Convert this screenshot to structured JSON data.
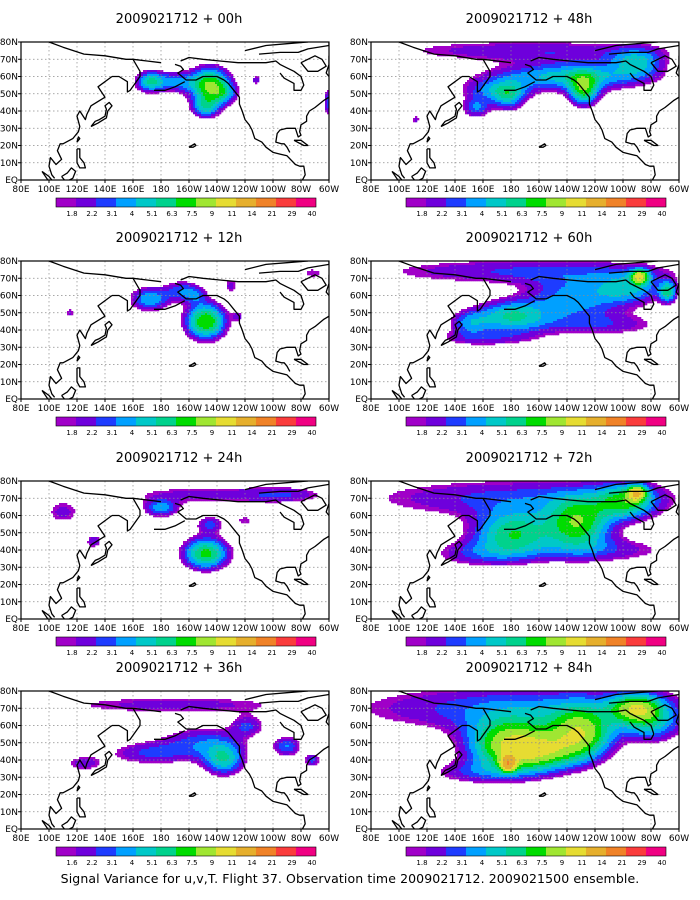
{
  "figure": {
    "caption": "Signal Variance for u,v,T. Flight 37. Observation time 2009021712. 2009021500 ensemble."
  },
  "x_tick_labels": [
    "80E",
    "100E",
    "120E",
    "140E",
    "160E",
    "180",
    "160W",
    "140W",
    "120W",
    "100W",
    "80W",
    "60W"
  ],
  "y_tick_labels": [
    "80N",
    "70N",
    "60N",
    "50N",
    "40N",
    "30N",
    "20N",
    "10N",
    "EQ"
  ],
  "colorbar": {
    "labels": [
      "1.8",
      "2.2",
      "3.1",
      "4",
      "5.1",
      "6.3",
      "7.5",
      "9",
      "11",
      "14",
      "21",
      "29",
      "40"
    ],
    "label_variants": {
      "panel_36h": "1.6"
    },
    "colors": [
      "#a000c8",
      "#6e00dc",
      "#1e3cff",
      "#00a0ff",
      "#00c8c8",
      "#00d28c",
      "#00dc00",
      "#a0e632",
      "#e6dc32",
      "#e6af2d",
      "#f08228",
      "#fa3c3c",
      "#f00082"
    ]
  },
  "panels": [
    {
      "title": "2009021712 + 00h",
      "lead_hours": 0
    },
    {
      "title": "2009021712 + 48h",
      "lead_hours": 48
    },
    {
      "title": "2009021712 + 12h",
      "lead_hours": 12
    },
    {
      "title": "2009021712 + 60h",
      "lead_hours": 60
    },
    {
      "title": "2009021712 + 24h",
      "lead_hours": 24
    },
    {
      "title": "2009021712 + 72h",
      "lead_hours": 72
    },
    {
      "title": "2009021712 + 36h",
      "lead_hours": 36
    },
    {
      "title": "2009021712 + 84h",
      "lead_hours": 84
    }
  ],
  "chart_data": {
    "type": "heatmap",
    "x_range_deg_east": [
      80,
      300
    ],
    "y_range_deg_north": [
      0,
      80
    ],
    "grid": true,
    "levels": [
      1.8,
      2.2,
      3.1,
      4,
      5.1,
      6.3,
      7.5,
      9,
      11,
      14,
      21,
      29,
      40
    ],
    "fields": [
      {
        "lead_hours": 0,
        "blobs": [
          {
            "lon": 215,
            "lat": 55,
            "rlon": 14,
            "rlat": 10,
            "amp": 9
          },
          {
            "lon": 190,
            "lat": 57,
            "rlon": 14,
            "rlat": 6,
            "amp": 4
          },
          {
            "lon": 172,
            "lat": 57,
            "rlon": 10,
            "rlat": 6,
            "amp": 6
          },
          {
            "lon": 248,
            "lat": 58,
            "rlon": 3,
            "rlat": 3,
            "amp": 3
          },
          {
            "lon": 300,
            "lat": 45,
            "rlon": 4,
            "rlat": 8,
            "amp": 4
          },
          {
            "lon": 212,
            "lat": 42,
            "rlon": 10,
            "rlat": 6,
            "amp": 5
          },
          {
            "lon": 225,
            "lat": 50,
            "rlon": 10,
            "rlat": 6,
            "amp": 3
          }
        ]
      },
      {
        "lead_hours": 48,
        "blobs": [
          {
            "lon": 190,
            "lat": 75,
            "rlon": 110,
            "rlat": 7,
            "amp": 2.8
          },
          {
            "lon": 228,
            "lat": 60,
            "rlon": 50,
            "rlat": 10,
            "amp": 3.5
          },
          {
            "lon": 168,
            "lat": 52,
            "rlon": 24,
            "rlat": 6,
            "amp": 3.5
          },
          {
            "lon": 232,
            "lat": 52,
            "rlon": 10,
            "rlat": 9,
            "amp": 7
          },
          {
            "lon": 178,
            "lat": 48,
            "rlon": 12,
            "rlat": 8,
            "amp": 4.5
          },
          {
            "lon": 155,
            "lat": 42,
            "rlon": 10,
            "rlat": 6,
            "amp": 4
          },
          {
            "lon": 270,
            "lat": 68,
            "rlon": 18,
            "rlat": 8,
            "amp": 4.5
          },
          {
            "lon": 210,
            "lat": 60,
            "rlon": 60,
            "rlat": 6,
            "amp": 2.5
          },
          {
            "lon": 112,
            "lat": 35,
            "rlon": 3,
            "rlat": 3,
            "amp": 2.5
          }
        ]
      },
      {
        "lead_hours": 12,
        "blobs": [
          {
            "lon": 212,
            "lat": 45,
            "rlon": 14,
            "rlat": 10,
            "amp": 9
          },
          {
            "lon": 172,
            "lat": 58,
            "rlon": 14,
            "rlat": 7,
            "amp": 5
          },
          {
            "lon": 195,
            "lat": 63,
            "rlon": 12,
            "rlat": 6,
            "amp": 3.5
          },
          {
            "lon": 205,
            "lat": 60,
            "rlon": 8,
            "rlat": 5,
            "amp": 2.5
          },
          {
            "lon": 235,
            "lat": 48,
            "rlon": 4,
            "rlat": 3,
            "amp": 2.5
          },
          {
            "lon": 230,
            "lat": 66,
            "rlon": 6,
            "rlat": 5,
            "amp": 2.5
          },
          {
            "lon": 288,
            "lat": 73,
            "rlon": 10,
            "rlat": 4,
            "amp": 2.2
          },
          {
            "lon": 115,
            "lat": 50,
            "rlon": 4,
            "rlat": 3,
            "amp": 2.4
          }
        ]
      },
      {
        "lead_hours": 60,
        "blobs": [
          {
            "lon": 190,
            "lat": 74,
            "rlon": 115,
            "rlat": 8,
            "amp": 3.2
          },
          {
            "lon": 180,
            "lat": 48,
            "rlon": 26,
            "rlat": 9,
            "amp": 6
          },
          {
            "lon": 225,
            "lat": 58,
            "rlon": 34,
            "rlat": 12,
            "amp": 4.5
          },
          {
            "lon": 150,
            "lat": 44,
            "rlon": 14,
            "rlat": 7,
            "amp": 3.5
          },
          {
            "lon": 265,
            "lat": 64,
            "rlon": 24,
            "rlat": 9,
            "amp": 4.5
          },
          {
            "lon": 272,
            "lat": 71,
            "rlon": 6,
            "rlat": 4,
            "amp": 9
          },
          {
            "lon": 292,
            "lat": 62,
            "rlon": 6,
            "rlat": 6,
            "amp": 6
          },
          {
            "lon": 245,
            "lat": 43,
            "rlon": 50,
            "rlat": 7,
            "amp": 2.6
          },
          {
            "lon": 160,
            "lat": 35,
            "rlon": 40,
            "rlat": 5,
            "amp": 2.4
          }
        ]
      },
      {
        "lead_hours": 24,
        "blobs": [
          {
            "lon": 212,
            "lat": 38,
            "rlon": 16,
            "rlat": 9,
            "amp": 8
          },
          {
            "lon": 180,
            "lat": 64,
            "rlon": 12,
            "rlat": 5,
            "amp": 4.5
          },
          {
            "lon": 215,
            "lat": 55,
            "rlon": 10,
            "rlat": 5,
            "amp": 3.3
          },
          {
            "lon": 210,
            "lat": 72,
            "rlon": 60,
            "rlat": 6,
            "amp": 2.6
          },
          {
            "lon": 110,
            "lat": 62,
            "rlon": 14,
            "rlat": 8,
            "amp": 2.5
          },
          {
            "lon": 132,
            "lat": 45,
            "rlon": 6,
            "rlat": 4,
            "amp": 3
          },
          {
            "lon": 270,
            "lat": 72,
            "rlon": 30,
            "rlat": 5,
            "amp": 2.3
          },
          {
            "lon": 240,
            "lat": 57,
            "rlon": 8,
            "rlat": 4,
            "amp": 2.2
          }
        ]
      },
      {
        "lead_hours": 72,
        "blobs": [
          {
            "lon": 190,
            "lat": 70,
            "rlon": 120,
            "rlat": 12,
            "amp": 3.5
          },
          {
            "lon": 182,
            "lat": 50,
            "rlon": 28,
            "rlat": 12,
            "amp": 7
          },
          {
            "lon": 228,
            "lat": 55,
            "rlon": 22,
            "rlat": 14,
            "amp": 8
          },
          {
            "lon": 262,
            "lat": 68,
            "rlon": 20,
            "rlat": 10,
            "amp": 6
          },
          {
            "lon": 270,
            "lat": 73,
            "rlon": 6,
            "rlat": 4,
            "amp": 10
          },
          {
            "lon": 160,
            "lat": 38,
            "rlon": 40,
            "rlat": 8,
            "amp": 3
          },
          {
            "lon": 250,
            "lat": 40,
            "rlon": 50,
            "rlat": 8,
            "amp": 2.6
          }
        ]
      },
      {
        "lead_hours": 36,
        "blobs": [
          {
            "lon": 225,
            "lat": 40,
            "rlon": 14,
            "rlat": 9,
            "amp": 5.5
          },
          {
            "lon": 210,
            "lat": 50,
            "rlon": 30,
            "rlat": 10,
            "amp": 3.5
          },
          {
            "lon": 170,
            "lat": 44,
            "rlon": 30,
            "rlat": 7,
            "amp": 3
          },
          {
            "lon": 190,
            "lat": 72,
            "rlon": 100,
            "rlat": 6,
            "amp": 2.6
          },
          {
            "lon": 270,
            "lat": 48,
            "rlon": 10,
            "rlat": 6,
            "amp": 4
          },
          {
            "lon": 288,
            "lat": 40,
            "rlon": 6,
            "rlat": 4,
            "amp": 3.5
          },
          {
            "lon": 125,
            "lat": 38,
            "rlon": 14,
            "rlat": 5,
            "amp": 2.6
          },
          {
            "lon": 242,
            "lat": 60,
            "rlon": 12,
            "rlat": 6,
            "amp": 3
          }
        ]
      },
      {
        "lead_hours": 84,
        "blobs": [
          {
            "lon": 190,
            "lat": 70,
            "rlon": 125,
            "rlat": 14,
            "amp": 4
          },
          {
            "lon": 180,
            "lat": 50,
            "rlon": 30,
            "rlat": 14,
            "amp": 9
          },
          {
            "lon": 230,
            "lat": 55,
            "rlon": 22,
            "rlat": 14,
            "amp": 9
          },
          {
            "lon": 200,
            "lat": 44,
            "rlon": 30,
            "rlat": 10,
            "amp": 6.5
          },
          {
            "lon": 270,
            "lat": 70,
            "rlon": 18,
            "rlat": 8,
            "amp": 8
          },
          {
            "lon": 178,
            "lat": 38,
            "rlon": 5,
            "rlat": 4,
            "amp": 13
          },
          {
            "lon": 160,
            "lat": 33,
            "rlon": 40,
            "rlat": 7,
            "amp": 3
          },
          {
            "lon": 280,
            "lat": 60,
            "rlon": 20,
            "rlat": 10,
            "amp": 4
          }
        ]
      }
    ]
  }
}
